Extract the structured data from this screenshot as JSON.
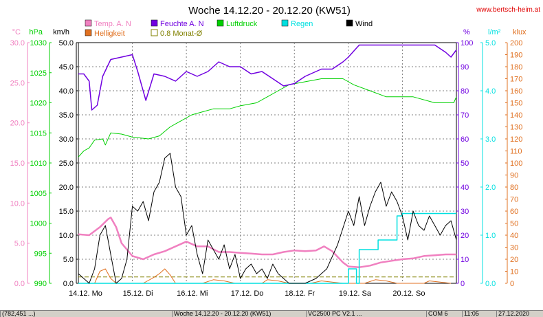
{
  "title": "Woche 14.12.20 - 20.12.20 (KW51)",
  "website": "www.bertsch-heim.at",
  "colors": {
    "temp": "#f080c0",
    "humidity": "#7000e0",
    "pressure": "#00d000",
    "rain": "#00e0e0",
    "wind": "#000000",
    "brightness": "#e07020",
    "avg": "#808000",
    "grid": "#808080",
    "website": "#e00000"
  },
  "axes": {
    "temp": {
      "unit": "°C",
      "ticks": [
        "30.0",
        "25.0",
        "20.0",
        "15.0",
        "10.0",
        "5.0",
        "0.0"
      ],
      "range": [
        0,
        30
      ]
    },
    "pressure": {
      "unit": "hPa",
      "ticks": [
        "1030",
        "1025",
        "1020",
        "1015",
        "1010",
        "1005",
        "1000",
        "995",
        "990"
      ],
      "range": [
        990,
        1030
      ]
    },
    "wind": {
      "unit": "km/h",
      "ticks": [
        "50.0",
        "45.0",
        "40.0",
        "35.0",
        "30.0",
        "25.0",
        "20.0",
        "15.0",
        "10.0",
        "5.0",
        "0.0"
      ],
      "range": [
        0,
        50
      ]
    },
    "humidity": {
      "unit": "%",
      "ticks": [
        "100",
        "90",
        "80",
        "70",
        "60",
        "50",
        "40",
        "30",
        "20",
        "10",
        "0"
      ],
      "range": [
        0,
        100
      ]
    },
    "rain": {
      "unit": "l/m²",
      "ticks": [
        "5.0",
        "4.0",
        "3.0",
        "2.0",
        "1.0",
        "0.0"
      ],
      "range": [
        0,
        5
      ]
    },
    "brightness": {
      "unit": "klux",
      "ticks": [
        "200",
        "190",
        "180",
        "170",
        "160",
        "150",
        "140",
        "130",
        "120",
        "110",
        "100",
        "90",
        "80",
        "70",
        "60",
        "50",
        "40",
        "30",
        "20",
        "10",
        "0"
      ],
      "range": [
        0,
        200
      ]
    }
  },
  "legend": [
    {
      "label": "Temp. A. N",
      "key": "temp",
      "style": "box"
    },
    {
      "label": "Feuchte A. N",
      "key": "humidity",
      "style": "box"
    },
    {
      "label": "Luftdruck",
      "key": "pressure",
      "style": "box"
    },
    {
      "label": "Regen",
      "key": "rain",
      "style": "box"
    },
    {
      "label": "Wind",
      "key": "wind",
      "style": "box"
    },
    {
      "label": "Helligkeit",
      "key": "brightness",
      "style": "box"
    },
    {
      "label": "0.8 Monat-Ø",
      "key": "avg",
      "style": "outline"
    }
  ],
  "x_labels": [
    "14.12. Mo",
    "15.12. Di",
    "16.12. Mi",
    "17.12. Do",
    "18.12. Fr",
    "19.12. Sa",
    "20.12. So"
  ],
  "statusbar": [
    "(782,451 ...)",
    "Woche 14.12.20 - 20.12.20 (KW51)",
    "VC2500 PC V2.1 ...",
    "COM 6",
    "11:05",
    "27.12.2020"
  ],
  "chart_data": {
    "type": "line",
    "x_domain_days": 7,
    "x_start": "14.12.20",
    "series": [
      {
        "name": "Temp. A. N",
        "axis": "temp",
        "points": [
          [
            0,
            6.1
          ],
          [
            0.2,
            6.0
          ],
          [
            0.4,
            7.0
          ],
          [
            0.55,
            8.0
          ],
          [
            0.6,
            8.2
          ],
          [
            0.7,
            7.0
          ],
          [
            0.8,
            5.0
          ],
          [
            0.9,
            4.2
          ],
          [
            1.0,
            3.4
          ],
          [
            1.2,
            3.0
          ],
          [
            1.4,
            3.6
          ],
          [
            1.6,
            4.0
          ],
          [
            1.8,
            4.6
          ],
          [
            2.0,
            5.2
          ],
          [
            2.2,
            4.6
          ],
          [
            2.4,
            4.6
          ],
          [
            2.6,
            3.9
          ],
          [
            2.8,
            3.9
          ],
          [
            3.0,
            3.8
          ],
          [
            3.2,
            3.7
          ],
          [
            3.4,
            3.6
          ],
          [
            3.6,
            3.6
          ],
          [
            3.8,
            3.9
          ],
          [
            4.0,
            4.1
          ],
          [
            4.2,
            4.0
          ],
          [
            4.4,
            4.1
          ],
          [
            4.55,
            4.6
          ],
          [
            4.7,
            4.0
          ],
          [
            4.9,
            2.6
          ],
          [
            5.0,
            2.1
          ],
          [
            5.2,
            2.0
          ],
          [
            5.4,
            2.2
          ],
          [
            5.6,
            2.6
          ],
          [
            5.8,
            2.8
          ],
          [
            6.0,
            3.0
          ],
          [
            6.2,
            3.1
          ],
          [
            6.4,
            3.4
          ],
          [
            6.6,
            3.5
          ],
          [
            6.8,
            3.6
          ],
          [
            7.0,
            3.6
          ]
        ]
      },
      {
        "name": "Feuchte A. N",
        "axis": "humidity",
        "points": [
          [
            0,
            87
          ],
          [
            0.1,
            87
          ],
          [
            0.2,
            84
          ],
          [
            0.25,
            72
          ],
          [
            0.35,
            74
          ],
          [
            0.45,
            86
          ],
          [
            0.6,
            93
          ],
          [
            1.0,
            95
          ],
          [
            1.1,
            88
          ],
          [
            1.25,
            76
          ],
          [
            1.4,
            87
          ],
          [
            1.6,
            86
          ],
          [
            1.8,
            84
          ],
          [
            2.0,
            88
          ],
          [
            2.2,
            86
          ],
          [
            2.4,
            88
          ],
          [
            2.6,
            92
          ],
          [
            2.8,
            90
          ],
          [
            3.0,
            90
          ],
          [
            3.2,
            87
          ],
          [
            3.4,
            88
          ],
          [
            3.6,
            85
          ],
          [
            3.8,
            82
          ],
          [
            4.0,
            83
          ],
          [
            4.2,
            86
          ],
          [
            4.5,
            89
          ],
          [
            4.7,
            89
          ],
          [
            4.9,
            92
          ],
          [
            5.0,
            94
          ],
          [
            5.2,
            99
          ],
          [
            5.5,
            99
          ],
          [
            6.0,
            99
          ],
          [
            6.6,
            99
          ],
          [
            6.8,
            96
          ],
          [
            6.9,
            94
          ],
          [
            7.0,
            97
          ]
        ]
      },
      {
        "name": "Luftdruck",
        "axis": "pressure",
        "points": [
          [
            0,
            1011.0
          ],
          [
            0.1,
            1012.0
          ],
          [
            0.2,
            1012.5
          ],
          [
            0.3,
            1013.8
          ],
          [
            0.45,
            1014.0
          ],
          [
            0.5,
            1013.0
          ],
          [
            0.6,
            1015.0
          ],
          [
            0.8,
            1014.8
          ],
          [
            1.0,
            1014.3
          ],
          [
            1.3,
            1014.0
          ],
          [
            1.5,
            1014.5
          ],
          [
            1.7,
            1016.0
          ],
          [
            1.9,
            1017.0
          ],
          [
            2.1,
            1018.0
          ],
          [
            2.3,
            1018.5
          ],
          [
            2.5,
            1019.0
          ],
          [
            2.8,
            1019.0
          ],
          [
            3.0,
            1019.5
          ],
          [
            3.3,
            1020.0
          ],
          [
            3.5,
            1021.0
          ],
          [
            3.7,
            1022.0
          ],
          [
            3.9,
            1023.0
          ],
          [
            4.2,
            1023.5
          ],
          [
            4.5,
            1024.0
          ],
          [
            4.9,
            1024.0
          ],
          [
            5.1,
            1023.0
          ],
          [
            5.4,
            1022.0
          ],
          [
            5.7,
            1021.0
          ],
          [
            6.2,
            1021.0
          ],
          [
            6.6,
            1020.0
          ],
          [
            6.95,
            1020.0
          ],
          [
            7.0,
            1021.0
          ]
        ]
      },
      {
        "name": "Wind",
        "axis": "wind",
        "points": [
          [
            0,
            2
          ],
          [
            0.1,
            1
          ],
          [
            0.2,
            0
          ],
          [
            0.3,
            3
          ],
          [
            0.4,
            10
          ],
          [
            0.5,
            12
          ],
          [
            0.6,
            6
          ],
          [
            0.7,
            0
          ],
          [
            0.8,
            1
          ],
          [
            0.9,
            5
          ],
          [
            1.0,
            16
          ],
          [
            1.1,
            15
          ],
          [
            1.2,
            17
          ],
          [
            1.3,
            13
          ],
          [
            1.4,
            19
          ],
          [
            1.5,
            21
          ],
          [
            1.6,
            26
          ],
          [
            1.7,
            27
          ],
          [
            1.8,
            20
          ],
          [
            1.9,
            18
          ],
          [
            2.0,
            10
          ],
          [
            2.1,
            12
          ],
          [
            2.2,
            6
          ],
          [
            2.3,
            2
          ],
          [
            2.4,
            9
          ],
          [
            2.5,
            7
          ],
          [
            2.6,
            5
          ],
          [
            2.7,
            8
          ],
          [
            2.8,
            3
          ],
          [
            2.9,
            6
          ],
          [
            3.0,
            1
          ],
          [
            3.1,
            3
          ],
          [
            3.2,
            4
          ],
          [
            3.3,
            2
          ],
          [
            3.4,
            3
          ],
          [
            3.5,
            1
          ],
          [
            3.6,
            4
          ],
          [
            3.7,
            2
          ],
          [
            3.8,
            1
          ],
          [
            3.9,
            0
          ],
          [
            4.0,
            0
          ],
          [
            4.2,
            0
          ],
          [
            4.4,
            1
          ],
          [
            4.6,
            3
          ],
          [
            4.8,
            8
          ],
          [
            5.0,
            15
          ],
          [
            5.1,
            12
          ],
          [
            5.2,
            18
          ],
          [
            5.3,
            12
          ],
          [
            5.4,
            16
          ],
          [
            5.5,
            19
          ],
          [
            5.6,
            21
          ],
          [
            5.7,
            16
          ],
          [
            5.8,
            19
          ],
          [
            5.9,
            17
          ],
          [
            6.0,
            14
          ],
          [
            6.1,
            9
          ],
          [
            6.2,
            15
          ],
          [
            6.3,
            12
          ],
          [
            6.4,
            11
          ],
          [
            6.5,
            14
          ],
          [
            6.6,
            12
          ],
          [
            6.7,
            10
          ],
          [
            6.8,
            12
          ],
          [
            6.9,
            13
          ],
          [
            7.0,
            9
          ]
        ]
      },
      {
        "name": "Regen",
        "axis": "rain",
        "points": [
          [
            0,
            0
          ],
          [
            5.0,
            0
          ],
          [
            5.0,
            0.3
          ],
          [
            5.15,
            0.3
          ],
          [
            5.15,
            0
          ],
          [
            5.2,
            0
          ],
          [
            5.2,
            0.7
          ],
          [
            5.55,
            0.7
          ],
          [
            5.55,
            0.9
          ],
          [
            5.9,
            0.9
          ],
          [
            5.9,
            1.4
          ],
          [
            5.95,
            1.4
          ],
          [
            5.95,
            1.4
          ],
          [
            6.0,
            1.4
          ],
          [
            6.0,
            1.45
          ],
          [
            7.0,
            1.45
          ]
        ]
      },
      {
        "name": "Helligkeit",
        "axis": "brightness",
        "points": [
          [
            0,
            0
          ],
          [
            0.3,
            0
          ],
          [
            0.4,
            10
          ],
          [
            0.5,
            12
          ],
          [
            0.6,
            4
          ],
          [
            0.7,
            0
          ],
          [
            1.2,
            0
          ],
          [
            1.4,
            5
          ],
          [
            1.5,
            8
          ],
          [
            1.6,
            12
          ],
          [
            1.7,
            7
          ],
          [
            1.8,
            0
          ],
          [
            2.3,
            0
          ],
          [
            2.5,
            3
          ],
          [
            2.7,
            2
          ],
          [
            2.9,
            0
          ],
          [
            3.4,
            0
          ],
          [
            3.5,
            3
          ],
          [
            3.7,
            2
          ],
          [
            3.9,
            0
          ],
          [
            4.3,
            0
          ],
          [
            4.5,
            2
          ],
          [
            4.7,
            1
          ],
          [
            4.9,
            0
          ],
          [
            5.3,
            0
          ],
          [
            5.5,
            3
          ],
          [
            5.7,
            2
          ],
          [
            5.9,
            0
          ],
          [
            6.4,
            0
          ],
          [
            6.5,
            2
          ],
          [
            6.7,
            1
          ],
          [
            6.9,
            0
          ]
        ]
      },
      {
        "name": "0.8 Monat-Ø",
        "axis": "temp",
        "points": [
          [
            0,
            0.8
          ],
          [
            7.0,
            0.8
          ]
        ]
      }
    ],
    "grid": true
  }
}
